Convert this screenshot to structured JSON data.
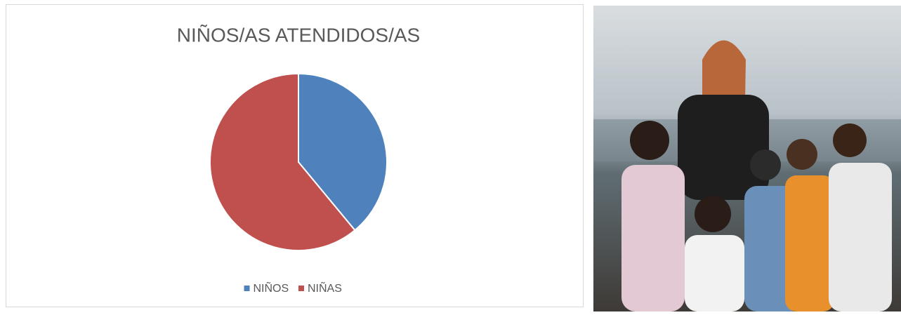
{
  "chart_data": {
    "type": "pie",
    "title": "NIÑOS/AS ATENDIDOS/AS",
    "categories": [
      "NIÑOS",
      "NIÑAS"
    ],
    "values": [
      39,
      61
    ],
    "colors": [
      "#4f81bd",
      "#c0504d"
    ],
    "legend": "bottom"
  }
}
